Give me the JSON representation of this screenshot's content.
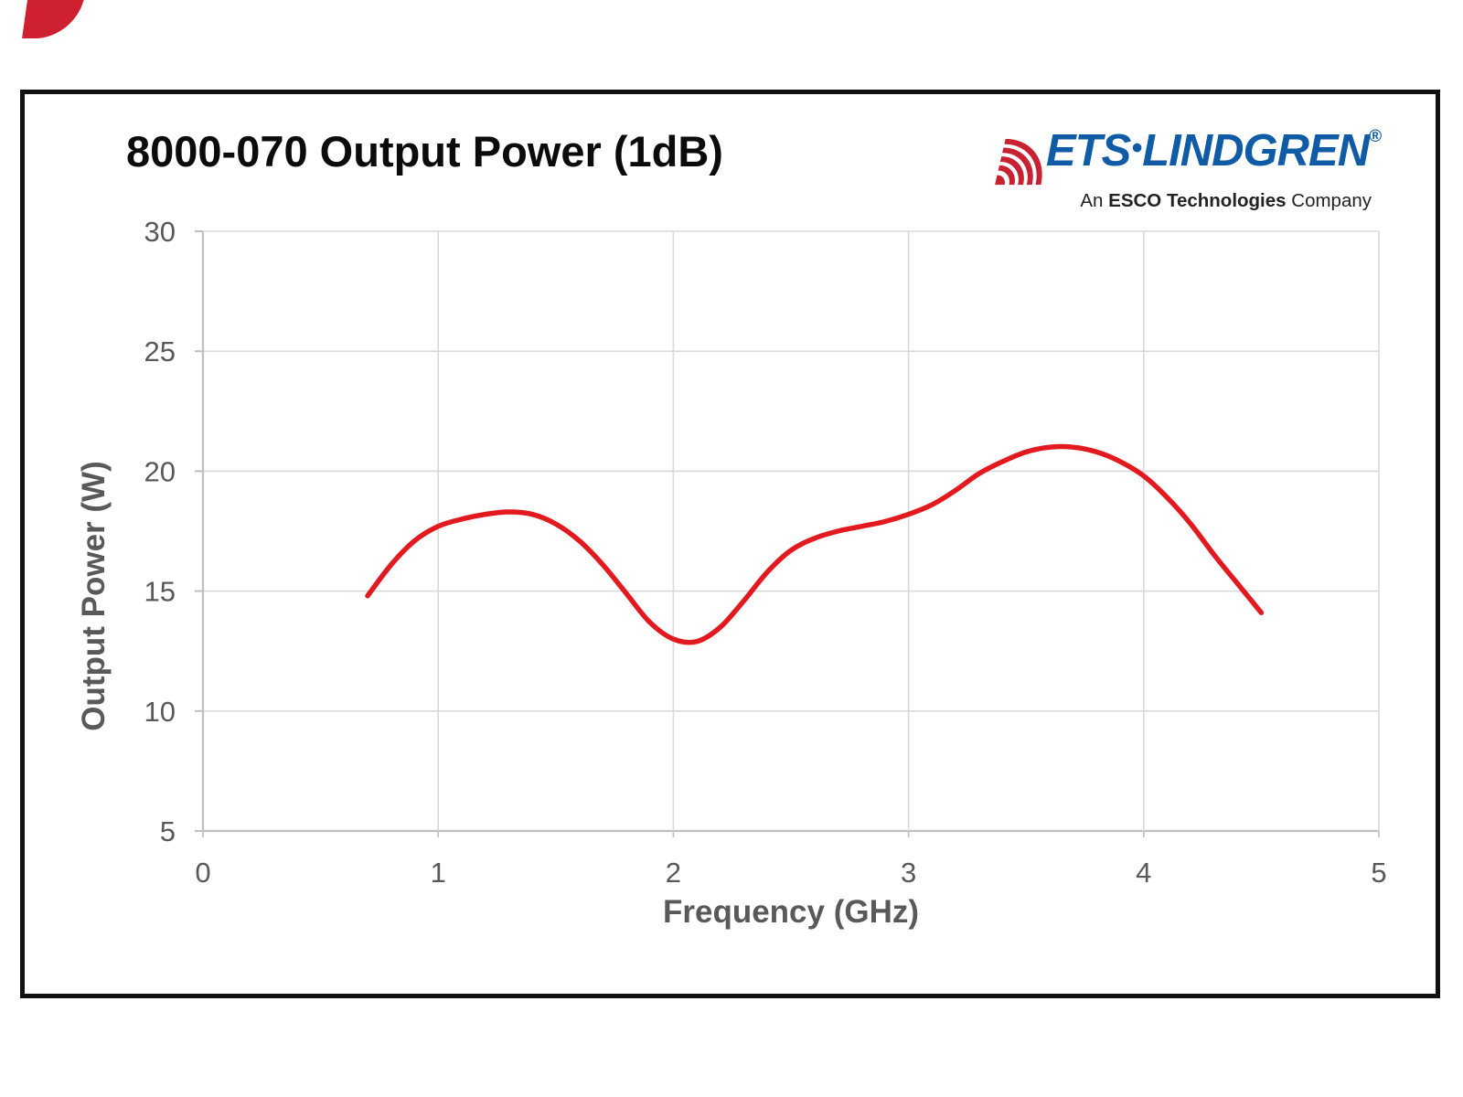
{
  "page": {
    "title": "8000-070 Output Power (1dB)"
  },
  "logo": {
    "brand_ets": "ETS",
    "brand_sep": "•",
    "brand_lindgren": "LINDGREN",
    "registered": "®",
    "tagline_prefix": "An ",
    "tagline_bold": "ESCO Technologies",
    "tagline_suffix": " Company",
    "brand_color": "#0f5ba6",
    "wave_color": "#c82132"
  },
  "chart_data": {
    "type": "line",
    "title": "8000-070 Output Power (1dB)",
    "xlabel": "Frequency (GHz)",
    "ylabel": "Output Power (W)",
    "xlim": [
      0,
      5
    ],
    "ylim": [
      5,
      30
    ],
    "x_ticks": [
      0,
      1,
      2,
      3,
      4,
      5
    ],
    "y_ticks": [
      5,
      10,
      15,
      20,
      25,
      30
    ],
    "grid": true,
    "legend": "none",
    "line_color": "#e21a1f",
    "grid_color": "#d9d9d9",
    "axis_color": "#bfbfbf",
    "tick_label_color": "#595959",
    "series": [
      {
        "name": "Output Power",
        "x": [
          0.7,
          0.8,
          0.9,
          1.0,
          1.1,
          1.2,
          1.3,
          1.4,
          1.5,
          1.6,
          1.7,
          1.8,
          1.9,
          2.0,
          2.1,
          2.2,
          2.3,
          2.4,
          2.5,
          2.6,
          2.7,
          2.8,
          2.9,
          3.0,
          3.1,
          3.2,
          3.3,
          3.4,
          3.5,
          3.6,
          3.7,
          3.8,
          3.9,
          4.0,
          4.1,
          4.2,
          4.3,
          4.4,
          4.5
        ],
        "y": [
          14.8,
          16.1,
          17.1,
          17.7,
          18.0,
          18.2,
          18.3,
          18.2,
          17.8,
          17.1,
          16.1,
          14.9,
          13.7,
          13.0,
          12.9,
          13.5,
          14.6,
          15.8,
          16.7,
          17.2,
          17.5,
          17.7,
          17.9,
          18.2,
          18.6,
          19.2,
          19.9,
          20.4,
          20.8,
          21.0,
          21.0,
          20.8,
          20.4,
          19.8,
          18.9,
          17.8,
          16.5,
          15.3,
          14.1
        ]
      }
    ]
  }
}
